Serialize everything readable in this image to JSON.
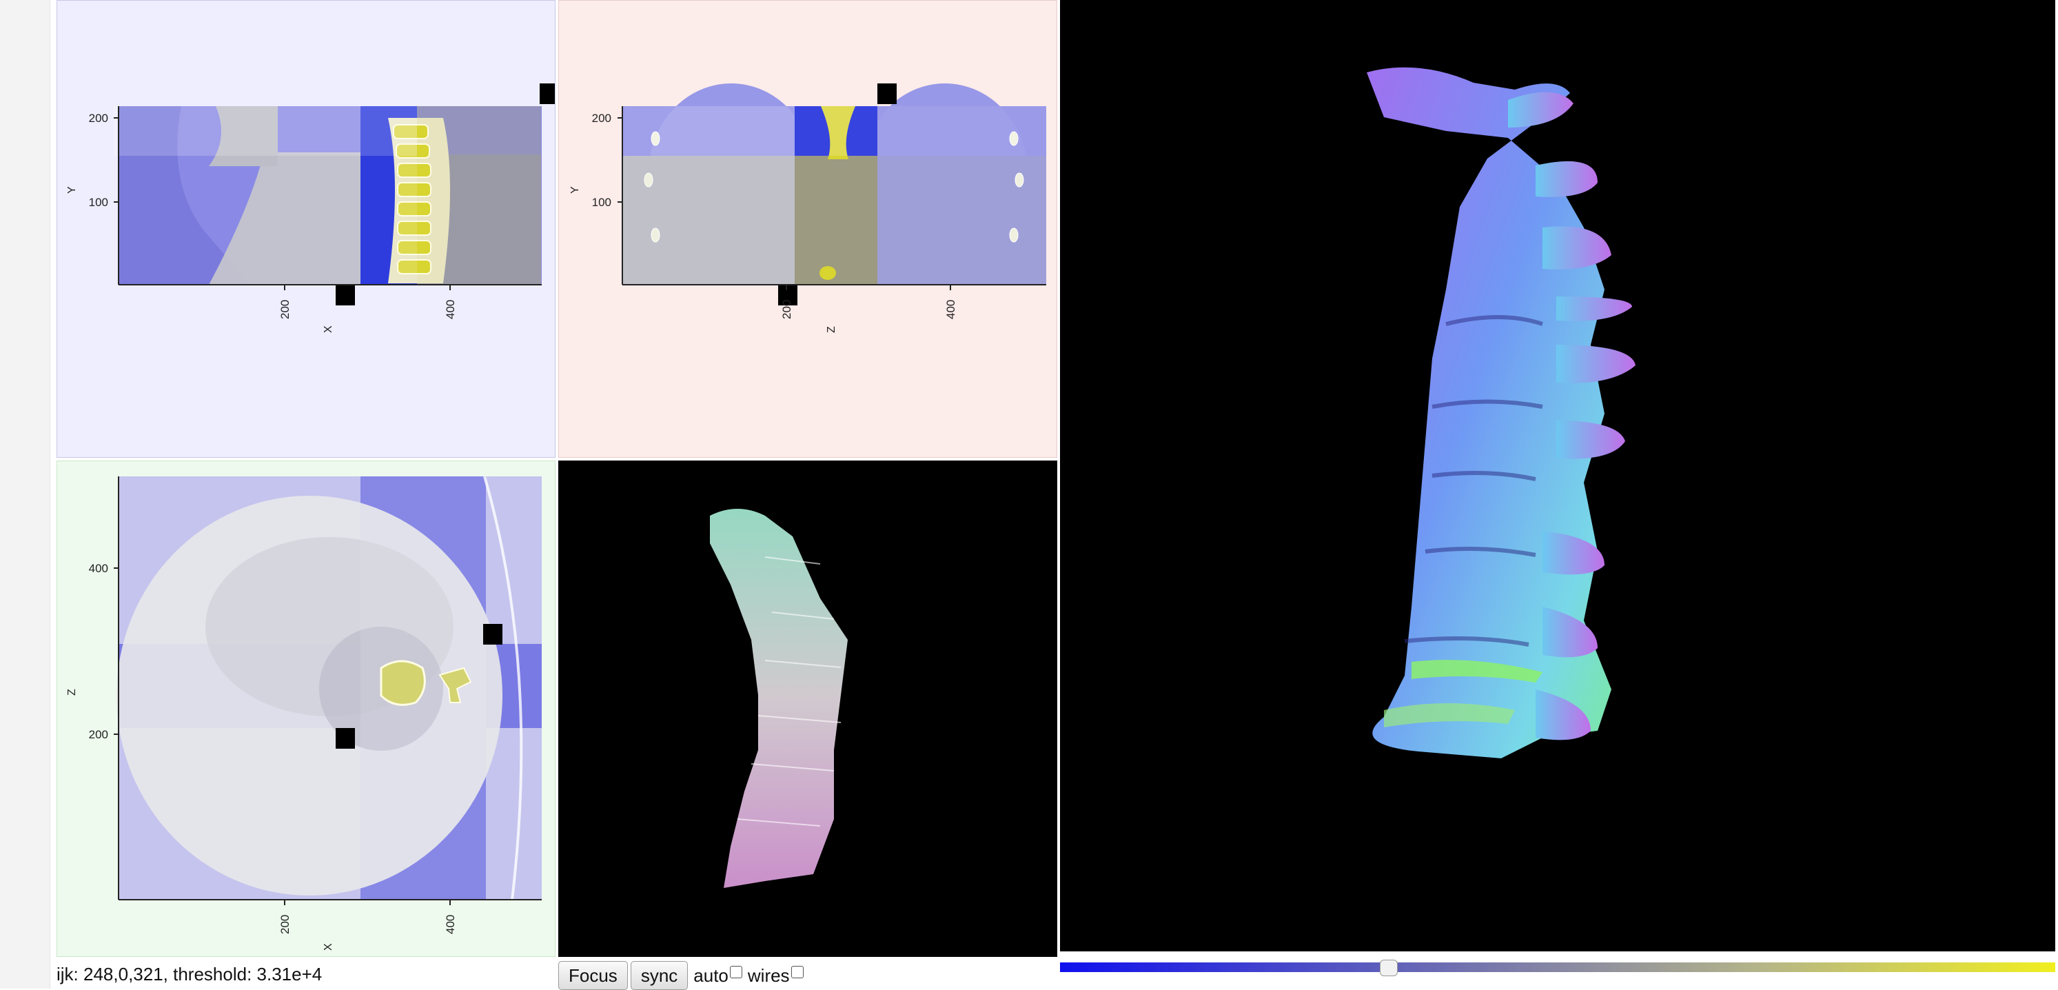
{
  "status": {
    "text": "ijk: 248,0,321, threshold: 3.31e+4"
  },
  "views": {
    "sagittal": {
      "x_label": "X",
      "y_label": "Y",
      "x_ticks": [
        "200",
        "400"
      ],
      "y_ticks": [
        "100",
        "200"
      ]
    },
    "coronal": {
      "x_label": "Z",
      "y_label": "Y",
      "x_ticks": [
        "200",
        "400"
      ],
      "y_ticks": [
        "100",
        "200"
      ]
    },
    "axial": {
      "x_label": "X",
      "y_label": "Z",
      "x_ticks": [
        "200",
        "400"
      ],
      "y_ticks": [
        "200",
        "400"
      ]
    }
  },
  "controls": {
    "focus_label": "Focus",
    "sync_label": "sync",
    "auto_label": "auto",
    "auto_checked": false,
    "wires_label": "wires",
    "wires_checked": false
  },
  "threshold_slider": {
    "position": 0.33
  },
  "colors": {
    "mask_blue": "#0000ff",
    "marker": "#000000",
    "bone_highlight": "#dcdc30",
    "surface_normals": "#8080ff"
  }
}
